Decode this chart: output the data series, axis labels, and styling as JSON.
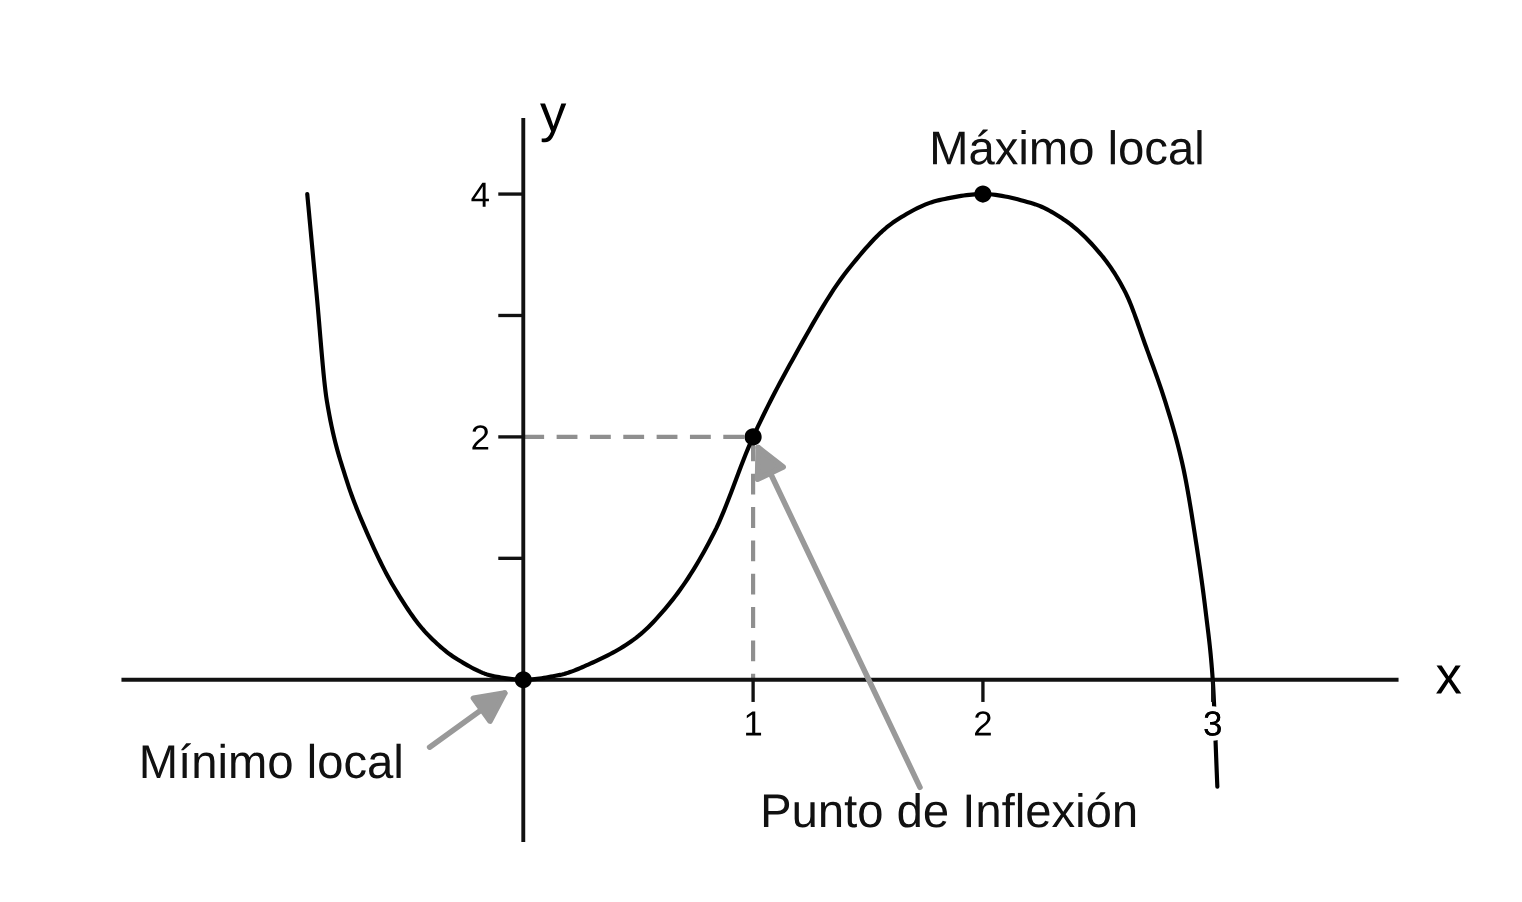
{
  "chart_data": {
    "type": "line",
    "xlabel": "x",
    "ylabel": "y",
    "xlim": [
      -1.74,
      3.8
    ],
    "ylim": [
      -1.32,
      4.61
    ],
    "xticks": [
      1,
      2,
      3
    ],
    "yticks": [
      {
        "value": 1,
        "label": null
      },
      2,
      {
        "value": 3,
        "label": null
      },
      4
    ],
    "series": [
      {
        "color": "#000000",
        "x": [
          -0.94,
          -0.9,
          -0.855,
          -0.77,
          -0.68,
          -0.565,
          -0.42,
          -0.28,
          -0.13,
          0,
          0.16,
          0.3,
          0.48,
          0.65,
          0.83,
          1,
          1.17,
          1.41,
          1.62,
          1.81,
          2,
          2.22,
          2.36,
          2.51,
          2.62,
          2.71,
          2.8,
          2.87,
          2.93,
          2.97,
          3.0,
          3.02
        ],
        "values": [
          4.0,
          3.19,
          2.3,
          1.65,
          1.21,
          0.77,
          0.38,
          0.16,
          0.03,
          0,
          0.04,
          0.14,
          0.33,
          0.66,
          1.21,
          2,
          2.63,
          3.37,
          3.78,
          3.95,
          4,
          3.92,
          3.78,
          3.51,
          3.19,
          2.74,
          2.25,
          1.76,
          1.1,
          0.55,
          0,
          -0.88
        ]
      },
      {
        "type": "line",
        "color": "#8f8f8f",
        "line_style": "dashed",
        "x": [
          0,
          1,
          1
        ],
        "values": [
          2,
          2,
          0
        ]
      },
      {
        "type": "scatter",
        "color": "#000000",
        "marker": "circle",
        "x": [
          0,
          1,
          2
        ],
        "values": [
          0,
          2,
          4
        ]
      }
    ],
    "annotations": [
      {
        "text": "Máximo local",
        "x": 2,
        "y": 4
      },
      {
        "text": "Mínimo local",
        "x": 0,
        "y": 0
      },
      {
        "text": "Punto de Inflexión",
        "x": 1,
        "y": 2
      }
    ]
  }
}
